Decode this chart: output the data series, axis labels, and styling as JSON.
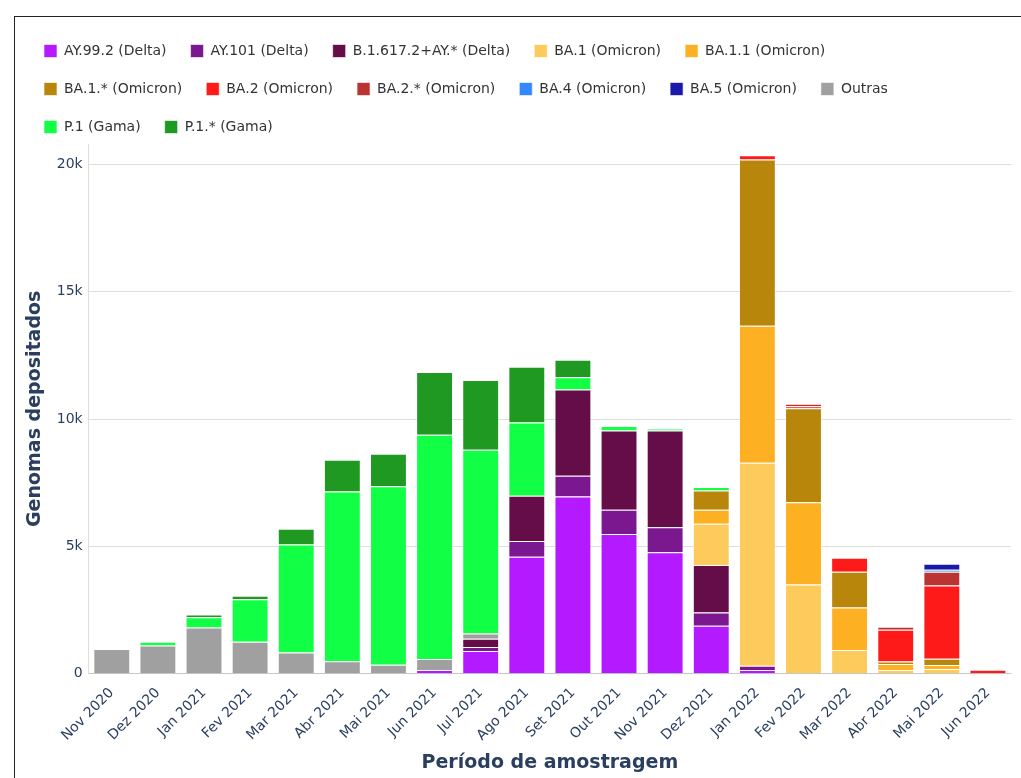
{
  "chart_data": {
    "type": "bar",
    "stacked": true,
    "xlabel": "Período de amostragem",
    "ylabel": "Genomas depositados",
    "legend": "top",
    "grid": "y",
    "categories": [
      "Nov 2020",
      "Dez 2020",
      "Jan 2021",
      "Fev 2021",
      "Mar 2021",
      "Abr 2021",
      "Mai 2021",
      "Jun 2021",
      "Jul 2021",
      "Ago 2021",
      "Set 2021",
      "Out 2021",
      "Nov 2021",
      "Dez 2021",
      "Jan 2022",
      "Fev 2022",
      "Mar 2022",
      "Abr 2022",
      "Mai 2022",
      "Jun 2022"
    ],
    "ylim": [
      0,
      20800
    ],
    "yticks": [
      0,
      {
        "value": 5000,
        "label": "5k"
      },
      {
        "value": 10000,
        "label": "10k"
      },
      {
        "value": 15000,
        "label": "15k"
      },
      {
        "value": 20000,
        "label": "20k"
      }
    ],
    "series": [
      {
        "name": "AY.99.2 (Delta)",
        "color": "#b31aff",
        "values": [
          null,
          null,
          null,
          null,
          null,
          null,
          null,
          140,
          890,
          4590,
          6960,
          5480,
          4770,
          1880,
          140,
          null,
          null,
          null,
          null,
          null
        ]
      },
      {
        "name": "AY.101 (Delta)",
        "color": "#7b1890",
        "values": [
          null,
          null,
          null,
          null,
          null,
          null,
          null,
          null,
          160,
          620,
          810,
          960,
          980,
          520,
          170,
          null,
          null,
          null,
          null,
          null
        ]
      },
      {
        "name": "B.1.617.2+AY.* (Delta)",
        "color": "#650d48",
        "values": [
          null,
          null,
          null,
          null,
          null,
          null,
          null,
          null,
          320,
          1780,
          3390,
          3110,
          3800,
          1870,
          null,
          null,
          null,
          null,
          null,
          null
        ]
      },
      {
        "name": "BA.1 (Omicron)",
        "color": "#fdcb5c",
        "values": [
          null,
          null,
          null,
          null,
          null,
          null,
          null,
          null,
          null,
          null,
          null,
          null,
          null,
          1620,
          7970,
          3500,
          930,
          140,
          180,
          null
        ]
      },
      {
        "name": "BA.1.1 (Omicron)",
        "color": "#fdb022",
        "values": [
          null,
          null,
          null,
          null,
          null,
          null,
          null,
          null,
          null,
          null,
          null,
          null,
          null,
          550,
          5380,
          3230,
          1670,
          240,
          160,
          null
        ]
      },
      {
        "name": "BA.1.* (Omicron)",
        "color": "#b8860b",
        "values": [
          null,
          null,
          null,
          null,
          null,
          null,
          null,
          null,
          null,
          null,
          null,
          null,
          null,
          750,
          6530,
          3690,
          1400,
          100,
          250,
          null
        ]
      },
      {
        "name": "BA.2 (Omicron)",
        "color": "#ff1a1a",
        "values": [
          null,
          null,
          null,
          null,
          null,
          null,
          null,
          null,
          null,
          null,
          null,
          null,
          null,
          null,
          170,
          80,
          550,
          1240,
          2870,
          150
        ]
      },
      {
        "name": "BA.2.* (Omicron)",
        "color": "#bb3333",
        "values": [
          null,
          null,
          null,
          null,
          null,
          null,
          null,
          null,
          null,
          null,
          null,
          null,
          null,
          null,
          null,
          100,
          null,
          120,
          540,
          null
        ]
      },
      {
        "name": "BA.4 (Omicron)",
        "color": "#3388ff",
        "values": [
          null,
          null,
          null,
          null,
          null,
          null,
          null,
          null,
          null,
          null,
          null,
          null,
          null,
          null,
          null,
          null,
          null,
          null,
          80,
          null
        ]
      },
      {
        "name": "BA.5 (Omicron)",
        "color": "#1a1aaa",
        "values": [
          null,
          null,
          null,
          null,
          null,
          null,
          null,
          null,
          null,
          null,
          null,
          null,
          null,
          null,
          null,
          null,
          null,
          null,
          240,
          null
        ]
      },
      {
        "name": "Outras",
        "color": "#a0a0a0",
        "values": [
          970,
          1110,
          1810,
          1250,
          830,
          490,
          350,
          440,
          210,
          null,
          null,
          null,
          null,
          null,
          null,
          null,
          null,
          null,
          null,
          null
        ]
      },
      {
        "name": "P.1 (Gama)",
        "color": "#11ff44",
        "values": [
          null,
          140,
          410,
          1670,
          4240,
          6660,
          7010,
          8800,
          7210,
          2870,
          480,
          180,
          80,
          140,
          null,
          null,
          null,
          null,
          null,
          null
        ]
      },
      {
        "name": "P.1.* (Gama)",
        "color": "#1f9922",
        "values": [
          null,
          null,
          100,
          140,
          620,
          1250,
          1280,
          2470,
          2740,
          2190,
          690,
          null,
          null,
          null,
          null,
          null,
          null,
          null,
          null,
          null
        ]
      }
    ]
  }
}
